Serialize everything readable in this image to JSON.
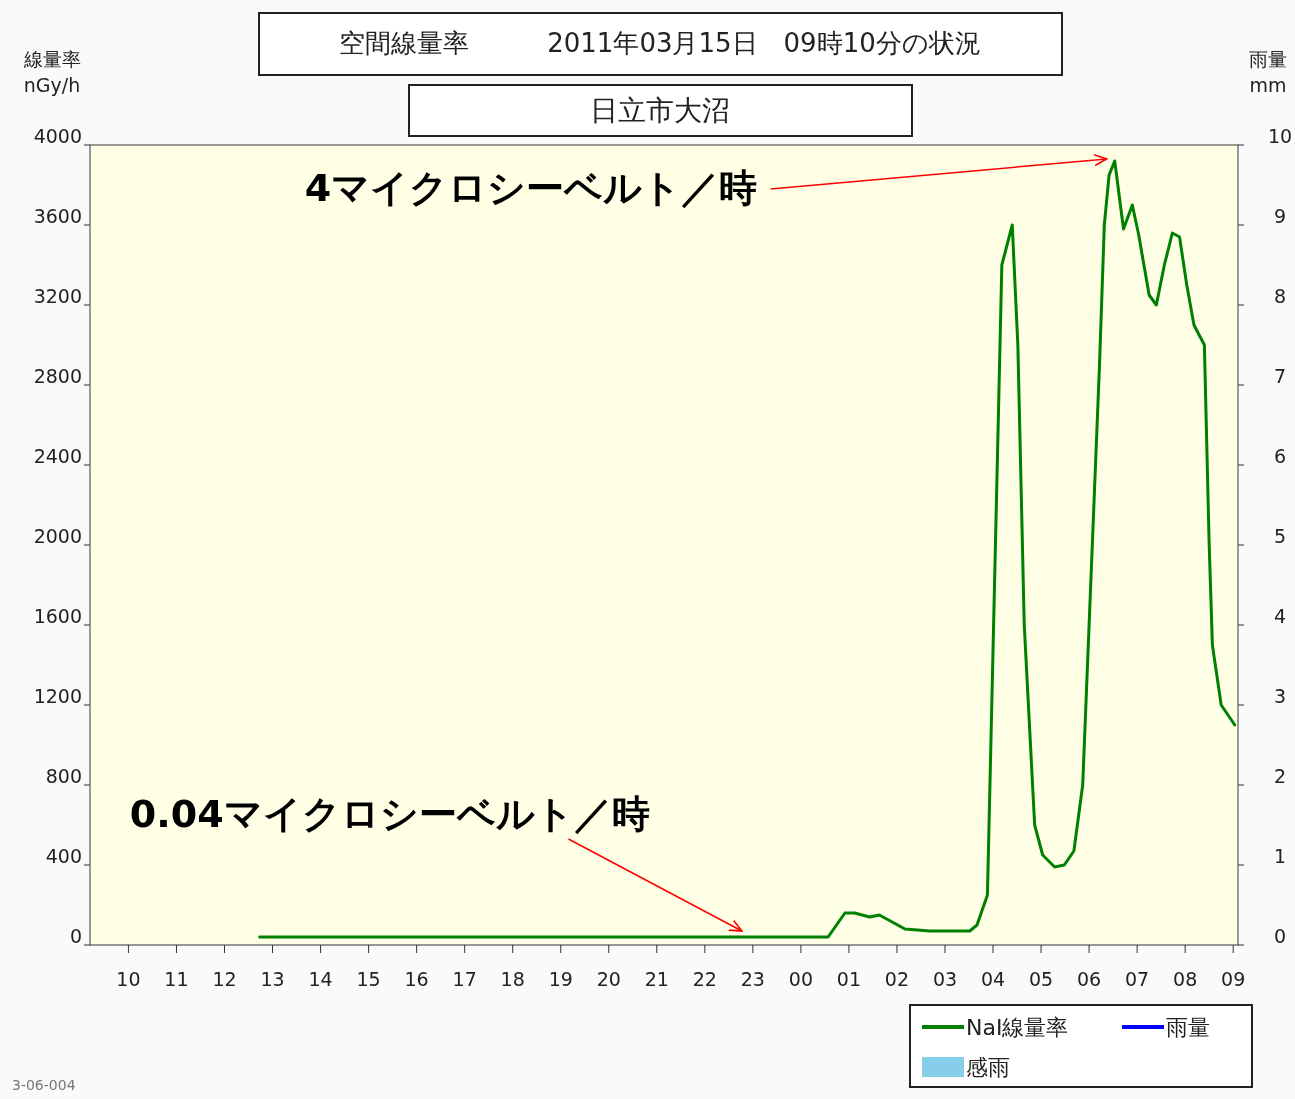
{
  "chart_data": {
    "type": "line",
    "title": "空間線量率　　　2011年03月15日　09時10分の状況",
    "subtitle": "日立市大沼",
    "ylabel": "線量率\nnGy/h",
    "y2label": "雨量\nmm",
    "xlim": [
      "2011-03-14T09:12",
      "2011-03-15T09:06"
    ],
    "xticks": [
      {
        "value": "2011-03-14T10:00",
        "label": "10"
      },
      {
        "value": "2011-03-14T11:00",
        "label": "11"
      },
      {
        "value": "2011-03-14T12:00",
        "label": "12"
      },
      {
        "value": "2011-03-14T13:00",
        "label": "13"
      },
      {
        "value": "2011-03-14T14:00",
        "label": "14"
      },
      {
        "value": "2011-03-14T15:00",
        "label": "15"
      },
      {
        "value": "2011-03-14T16:00",
        "label": "16"
      },
      {
        "value": "2011-03-14T17:00",
        "label": "17"
      },
      {
        "value": "2011-03-14T18:00",
        "label": "18"
      },
      {
        "value": "2011-03-14T19:00",
        "label": "19"
      },
      {
        "value": "2011-03-14T20:00",
        "label": "20"
      },
      {
        "value": "2011-03-14T21:00",
        "label": "21"
      },
      {
        "value": "2011-03-14T22:00",
        "label": "22"
      },
      {
        "value": "2011-03-14T23:00",
        "label": "23"
      },
      {
        "value": "2011-03-15T00:00",
        "label": "00"
      },
      {
        "value": "2011-03-15T01:00",
        "label": "01"
      },
      {
        "value": "2011-03-15T02:00",
        "label": "02"
      },
      {
        "value": "2011-03-15T03:00",
        "label": "03"
      },
      {
        "value": "2011-03-15T04:00",
        "label": "04"
      },
      {
        "value": "2011-03-15T05:00",
        "label": "05"
      },
      {
        "value": "2011-03-15T06:00",
        "label": "06"
      },
      {
        "value": "2011-03-15T07:00",
        "label": "07"
      },
      {
        "value": "2011-03-15T08:00",
        "label": "08"
      },
      {
        "value": "2011-03-15T09:00",
        "label": "09"
      }
    ],
    "ylim": [
      0,
      4000
    ],
    "yticks": [
      0,
      400,
      800,
      1200,
      1600,
      2000,
      2400,
      2800,
      3200,
      3600,
      4000
    ],
    "y2lim": [
      0,
      10
    ],
    "y2ticks": [
      0,
      1,
      2,
      3,
      4,
      5,
      6,
      7,
      8,
      9,
      10
    ],
    "legend": "bottom right",
    "grid": false,
    "series": [
      {
        "name": "NaI線量率",
        "color": "#008000",
        "x": [
          "2011-03-14T12:44",
          "2011-03-15T00:34",
          "2011-03-15T00:55",
          "2011-03-15T01:07",
          "2011-03-15T01:26",
          "2011-03-15T01:38",
          "2011-03-15T02:10",
          "2011-03-15T02:41",
          "2011-03-15T03:31",
          "2011-03-15T03:40",
          "2011-03-15T03:53",
          "2011-03-15T04:11",
          "2011-03-15T04:24",
          "2011-03-15T04:31",
          "2011-03-15T04:39",
          "2011-03-15T04:52",
          "2011-03-15T05:02",
          "2011-03-15T05:17",
          "2011-03-15T05:29",
          "2011-03-15T05:41",
          "2011-03-15T05:52",
          "2011-03-15T06:00",
          "2011-03-15T06:13",
          "2011-03-15T06:19",
          "2011-03-15T06:25",
          "2011-03-15T06:32",
          "2011-03-15T06:43",
          "2011-03-15T06:54",
          "2011-03-15T07:02",
          "2011-03-15T07:15",
          "2011-03-15T07:24",
          "2011-03-15T07:34",
          "2011-03-15T07:44",
          "2011-03-15T07:53",
          "2011-03-15T08:02",
          "2011-03-15T08:11",
          "2011-03-15T08:24",
          "2011-03-15T08:30",
          "2011-03-15T08:34",
          "2011-03-15T08:45",
          "2011-03-15T09:02"
        ],
        "values": [
          40,
          40,
          160,
          160,
          140,
          150,
          80,
          70,
          70,
          100,
          250,
          3400,
          3600,
          3000,
          1600,
          600,
          450,
          390,
          400,
          470,
          800,
          1600,
          2900,
          3600,
          3850,
          3920,
          3580,
          3700,
          3550,
          3250,
          3200,
          3400,
          3560,
          3540,
          3300,
          3100,
          3000,
          2000,
          1500,
          1200,
          1100
        ]
      },
      {
        "name": "雨量",
        "color": "#0000ff",
        "type": "line"
      },
      {
        "name": "感雨",
        "color": "#87ceeb",
        "type": "bar"
      }
    ],
    "annotations": [
      {
        "text": "4マイクロシーベルト／時",
        "x": "2011-03-15T06:32",
        "y": 3920
      },
      {
        "text": "0.04マイクロシーベルト／時",
        "x": "2011-03-14T22:50",
        "y": 40
      },
      "3-06-004"
    ]
  }
}
